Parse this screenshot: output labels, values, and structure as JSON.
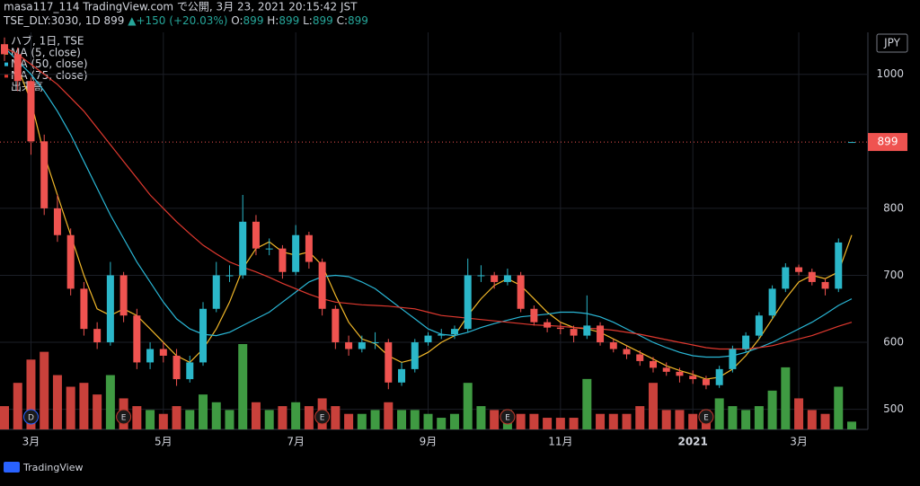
{
  "header": {
    "publisher": "masa117_114 TradingView.com で公開, 3月 23, 2021 20:15:42 JST",
    "symbol": "TSE_DLY:3030, 1D",
    "arrow": "▲",
    "change": "+150 (+20.03%)",
    "o_label": "O:",
    "h_label": "H:",
    "l_label": "L:",
    "c_label": "C:"
  },
  "chart_data": {
    "type": "candlestick",
    "symbol_name": "ハブ, 1日, TSE",
    "currency": "JPY",
    "volume_name": "出来高",
    "categories": [
      null,
      null,
      "3月",
      null,
      null,
      null,
      null,
      null,
      null,
      null,
      null,
      null,
      "5月",
      null,
      null,
      null,
      null,
      null,
      null,
      null,
      null,
      null,
      "7月",
      null,
      null,
      null,
      null,
      null,
      null,
      null,
      null,
      null,
      "9月",
      null,
      null,
      null,
      null,
      null,
      null,
      null,
      null,
      null,
      "11月",
      null,
      null,
      null,
      null,
      null,
      null,
      null,
      null,
      null,
      "2021",
      null,
      null,
      null,
      null,
      null,
      null,
      null,
      "3月",
      null,
      null,
      null,
      null
    ],
    "events": [
      null,
      null,
      "D",
      null,
      null,
      null,
      null,
      null,
      null,
      "E",
      null,
      null,
      null,
      null,
      null,
      null,
      null,
      null,
      null,
      null,
      null,
      null,
      null,
      null,
      "E",
      null,
      null,
      null,
      null,
      null,
      null,
      null,
      null,
      null,
      null,
      null,
      null,
      null,
      "E",
      null,
      null,
      null,
      null,
      null,
      null,
      null,
      null,
      null,
      null,
      null,
      null,
      null,
      null,
      "E",
      null,
      null,
      null,
      null,
      null,
      null,
      null,
      null,
      null,
      null,
      null
    ],
    "open": [
      1045,
      1030,
      990,
      900,
      800,
      760,
      680,
      620,
      600,
      700,
      640,
      570,
      590,
      580,
      545,
      570,
      650,
      700,
      700,
      780,
      740,
      740,
      705,
      760,
      720,
      650,
      600,
      590,
      600,
      600,
      540,
      560,
      600,
      610,
      612,
      620,
      700,
      700,
      690,
      700,
      650,
      630,
      622,
      620,
      610,
      625,
      600,
      590,
      582,
      572,
      562,
      556,
      550,
      545,
      536,
      560,
      590,
      610,
      640,
      680,
      712,
      705,
      690,
      680,
      899
    ],
    "high": [
      1055,
      1040,
      995,
      910,
      820,
      770,
      690,
      630,
      720,
      705,
      650,
      600,
      600,
      590,
      580,
      660,
      720,
      715,
      820,
      790,
      755,
      745,
      775,
      765,
      725,
      655,
      610,
      610,
      615,
      605,
      570,
      605,
      615,
      620,
      625,
      725,
      715,
      705,
      710,
      705,
      655,
      635,
      630,
      625,
      670,
      630,
      605,
      595,
      588,
      578,
      570,
      562,
      558,
      550,
      565,
      595,
      615,
      645,
      685,
      718,
      716,
      710,
      695,
      755,
      899
    ],
    "low": [
      1020,
      975,
      880,
      790,
      750,
      670,
      610,
      590,
      595,
      630,
      560,
      560,
      570,
      535,
      540,
      565,
      645,
      690,
      695,
      730,
      730,
      695,
      700,
      710,
      640,
      590,
      580,
      585,
      590,
      530,
      535,
      555,
      595,
      605,
      605,
      615,
      690,
      680,
      685,
      645,
      625,
      615,
      612,
      600,
      605,
      595,
      585,
      575,
      565,
      555,
      550,
      540,
      538,
      530,
      532,
      555,
      585,
      605,
      635,
      675,
      700,
      685,
      670,
      675,
      899
    ],
    "close": [
      1030,
      990,
      900,
      800,
      760,
      680,
      620,
      600,
      700,
      640,
      570,
      590,
      580,
      545,
      570,
      650,
      700,
      700,
      780,
      740,
      740,
      705,
      760,
      720,
      650,
      600,
      590,
      600,
      600,
      540,
      560,
      600,
      610,
      612,
      620,
      700,
      700,
      690,
      700,
      650,
      630,
      622,
      620,
      610,
      625,
      600,
      590,
      582,
      572,
      562,
      556,
      550,
      545,
      536,
      560,
      590,
      610,
      640,
      680,
      712,
      705,
      690,
      680,
      749,
      899
    ],
    "volume": [
      30,
      60,
      90,
      100,
      70,
      55,
      60,
      45,
      70,
      40,
      30,
      25,
      20,
      30,
      25,
      45,
      35,
      25,
      110,
      35,
      25,
      30,
      35,
      30,
      40,
      30,
      20,
      20,
      25,
      35,
      25,
      25,
      20,
      15,
      20,
      60,
      30,
      25,
      25,
      20,
      20,
      15,
      15,
      15,
      65,
      20,
      20,
      20,
      30,
      60,
      25,
      25,
      20,
      25,
      40,
      30,
      25,
      30,
      50,
      80,
      40,
      25,
      20,
      55,
      10
    ],
    "up_color": "#2bb7c9",
    "down_color": "#ef5350",
    "volume_up_color": "#3f9a42",
    "volume_down_color": "#c9413b",
    "series": [
      {
        "name": "MA (5, close)",
        "color": "#f2b829",
        "values": [
          null,
          1010,
          960,
          880,
          820,
          760,
          700,
          650,
          640,
          650,
          640,
          620,
          600,
          580,
          570,
          590,
          620,
          660,
          710,
          740,
          750,
          735,
          730,
          735,
          715,
          670,
          630,
          605,
          598,
          580,
          570,
          575,
          585,
          600,
          610,
          640,
          665,
          685,
          695,
          685,
          665,
          645,
          630,
          622,
          620,
          615,
          605,
          595,
          585,
          575,
          565,
          558,
          552,
          545,
          548,
          560,
          580,
          605,
          635,
          665,
          690,
          700,
          695,
          705,
          760
        ]
      },
      {
        "name": "MA (50, close)",
        "color": "#2ab7d6",
        "values": [
          1040,
          1020,
          1000,
          975,
          945,
          910,
          870,
          830,
          790,
          755,
          720,
          690,
          660,
          635,
          620,
          612,
          610,
          615,
          625,
          635,
          645,
          660,
          675,
          690,
          698,
          700,
          698,
          690,
          680,
          665,
          650,
          635,
          620,
          612,
          610,
          615,
          622,
          628,
          633,
          638,
          640,
          642,
          645,
          645,
          643,
          638,
          630,
          620,
          610,
          600,
          592,
          585,
          580,
          578,
          578,
          580,
          585,
          592,
          600,
          610,
          620,
          630,
          642,
          655,
          665
        ]
      },
      {
        "name": "MA (75, close)",
        "color": "#e0392f",
        "values": [
          1040,
          1030,
          1015,
          1000,
          985,
          965,
          945,
          920,
          895,
          870,
          845,
          820,
          800,
          780,
          762,
          745,
          732,
          720,
          712,
          705,
          697,
          688,
          680,
          672,
          665,
          660,
          658,
          656,
          655,
          654,
          652,
          650,
          645,
          640,
          638,
          636,
          634,
          632,
          630,
          628,
          626,
          625,
          624,
          622,
          621,
          620,
          618,
          615,
          612,
          608,
          604,
          600,
          596,
          592,
          590,
          590,
          590,
          592,
          595,
          600,
          605,
          610,
          617,
          624,
          630
        ]
      }
    ],
    "ylim": [
      470,
      1060
    ],
    "yticks": [
      500,
      600,
      700,
      800,
      1000
    ],
    "grid": true
  },
  "footer": "TradingView"
}
